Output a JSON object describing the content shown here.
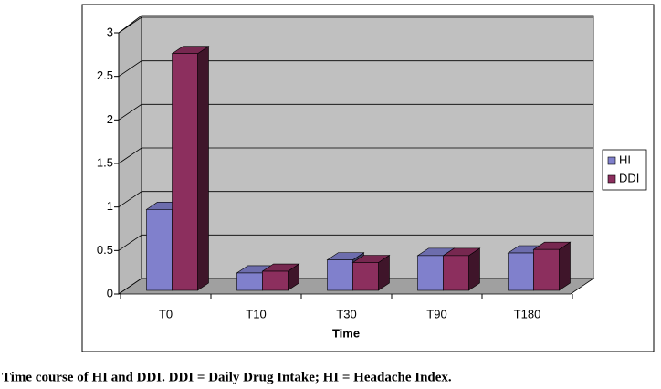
{
  "chart_data": {
    "type": "bar3d",
    "x_label": "Time",
    "categories": [
      "T0",
      "T10",
      "T30",
      "T90",
      "T180"
    ],
    "series": [
      {
        "name": "HI",
        "color": "#8080cc",
        "values": [
          0.93,
          0.2,
          0.35,
          0.4,
          0.43
        ]
      },
      {
        "name": "DDI",
        "color": "#8c2f5e",
        "values": [
          2.72,
          0.22,
          0.32,
          0.4,
          0.47
        ]
      }
    ],
    "ylim": [
      0,
      3
    ],
    "yticks": [
      0,
      0.5,
      1,
      1.5,
      2,
      2.5,
      3
    ],
    "grid": true,
    "legend": "right"
  },
  "caption": "Time course of HI and DDI. DDI = Daily Drug Intake; HI = Headache Index."
}
